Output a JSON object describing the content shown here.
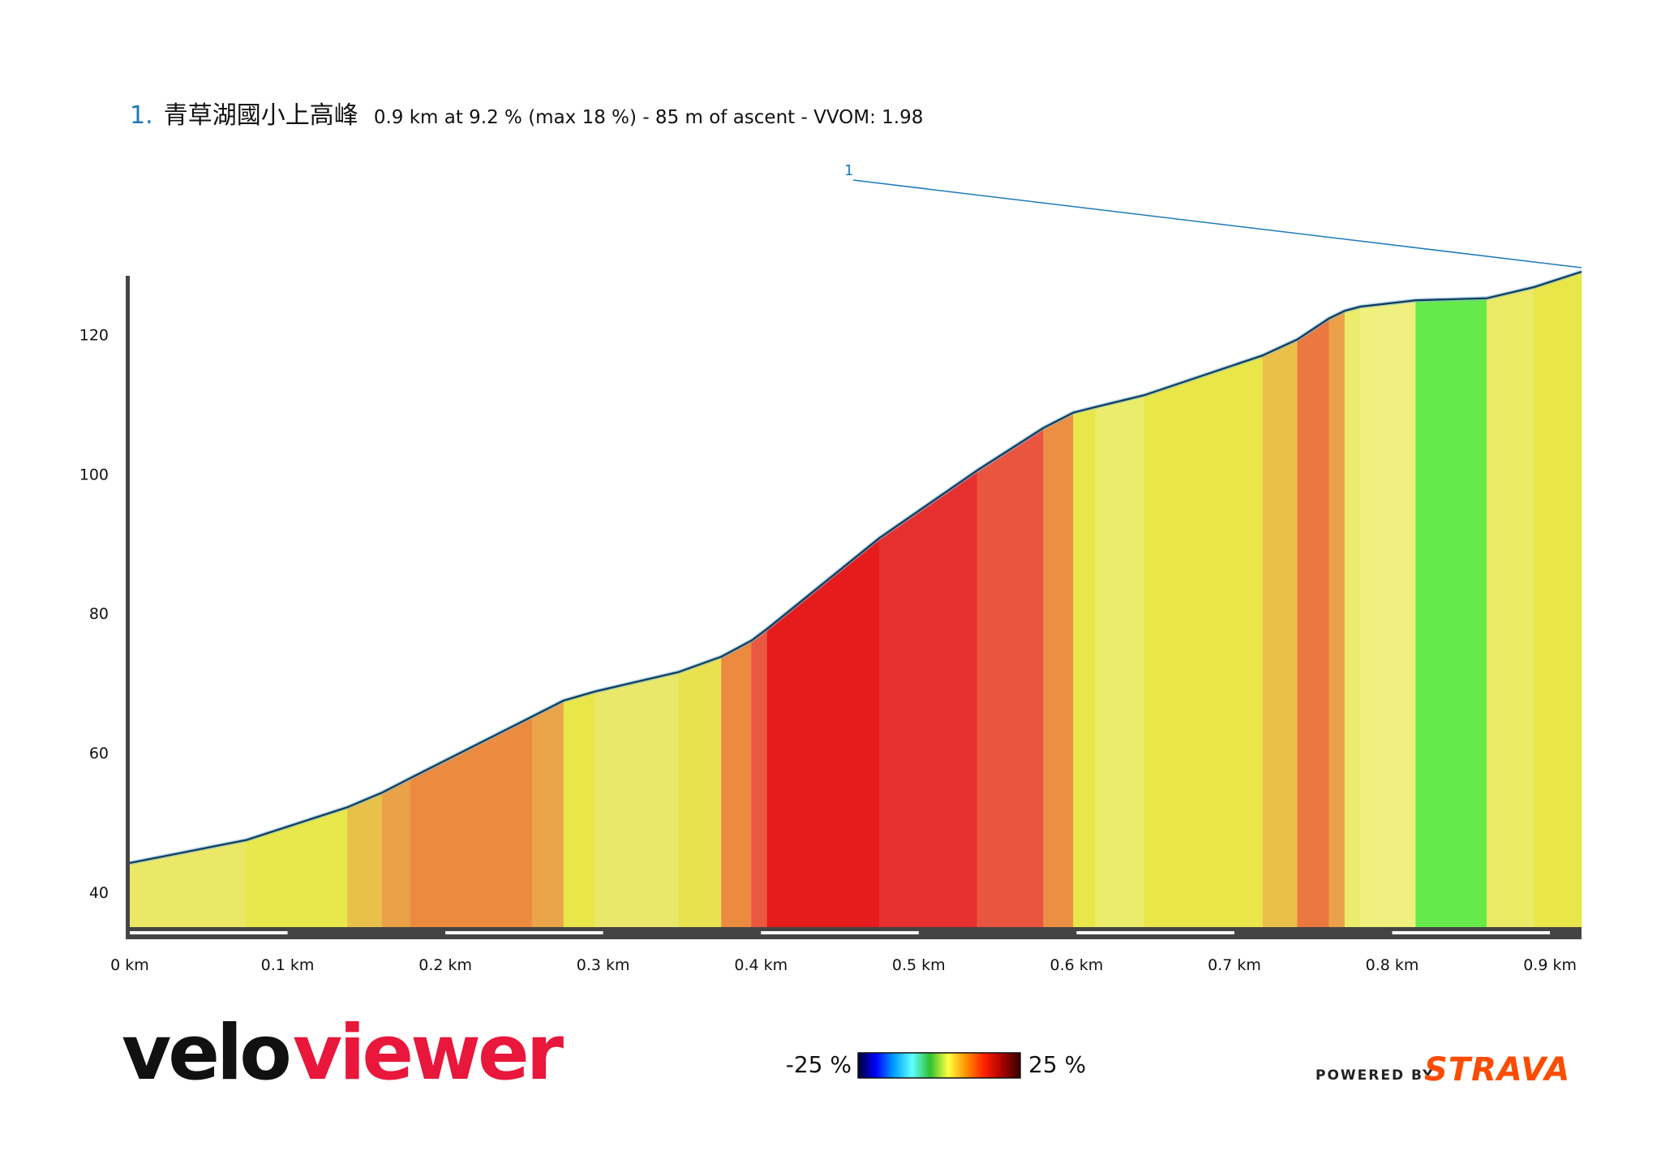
{
  "title": {
    "number": "1.",
    "name": "青草湖國小上高峰",
    "stats": "0.9 km at 9.2 % (max 18 %) - 85 m of ascent - VVOM: 1.98"
  },
  "marker": {
    "label": "1"
  },
  "branding": {
    "logo_part1": "velo",
    "logo_part2": "viewer",
    "powered_by": "POWERED BY",
    "strava": "STRAVA"
  },
  "legend": {
    "min_label": "-25 %",
    "max_label": "25 %",
    "gradient_colors": [
      "#000033",
      "#0000ff",
      "#00a0ff",
      "#60ffff",
      "#30c030",
      "#ffff40",
      "#ff9000",
      "#ff2000",
      "#aa0000",
      "#330000"
    ]
  },
  "colors": {
    "outline": "#0f3b5a",
    "axis": "#444444",
    "marker_line": "#1f7ab8"
  },
  "chart_data": {
    "type": "area",
    "title": "1. 青草湖國小上高峰",
    "xlabel": "",
    "ylabel": "",
    "x_unit": "km",
    "y_unit": "m",
    "xlim": [
      0,
      0.92
    ],
    "ylim": [
      35,
      129
    ],
    "x_ticks": [
      0,
      0.1,
      0.2,
      0.3,
      0.4,
      0.5,
      0.6,
      0.7,
      0.8,
      0.9
    ],
    "x_tick_labels": [
      "0 km",
      "0.1 km",
      "0.2 km",
      "0.3 km",
      "0.4 km",
      "0.5 km",
      "0.6 km",
      "0.7 km",
      "0.8 km",
      "0.9 km"
    ],
    "y_ticks": [
      40,
      60,
      80,
      100,
      120
    ],
    "y_tick_labels": [
      "40",
      "60",
      "80",
      "100",
      "120"
    ],
    "profile": {
      "x": [
        0,
        0.074,
        0.138,
        0.16,
        0.178,
        0.255,
        0.275,
        0.295,
        0.348,
        0.375,
        0.394,
        0.404,
        0.475,
        0.537,
        0.579,
        0.598,
        0.612,
        0.643,
        0.718,
        0.74,
        0.76,
        0.77,
        0.78,
        0.815,
        0.86,
        0.89,
        0.92
      ],
      "y": [
        44.2,
        47.5,
        52.2,
        54.3,
        56.4,
        65.2,
        67.5,
        68.8,
        71.6,
        73.8,
        76.1,
        77.8,
        90.8,
        100.5,
        106.6,
        108.8,
        109.6,
        111.3,
        117.0,
        119.3,
        122.3,
        123.4,
        124.0,
        124.9,
        125.2,
        126.8,
        129.0
      ]
    },
    "segment_colors": [
      "#ebe868",
      "#e8e84c",
      "#e9c14a",
      "#eaa148",
      "#ec8b40",
      "#eaa54a",
      "#e9e64a",
      "#e9e86a",
      "#e9e250",
      "#ec8b40",
      "#ea5842",
      "#e61b1b",
      "#e63030",
      "#ea5540",
      "#ec8f45",
      "#e9e64a",
      "#ecec6c",
      "#e9e64a",
      "#ebc04a",
      "#ec7840",
      "#eca04a",
      "#ecec6c",
      "#f0f080",
      "#66e94a",
      "#eaea66",
      "#e9e64a"
    ]
  }
}
